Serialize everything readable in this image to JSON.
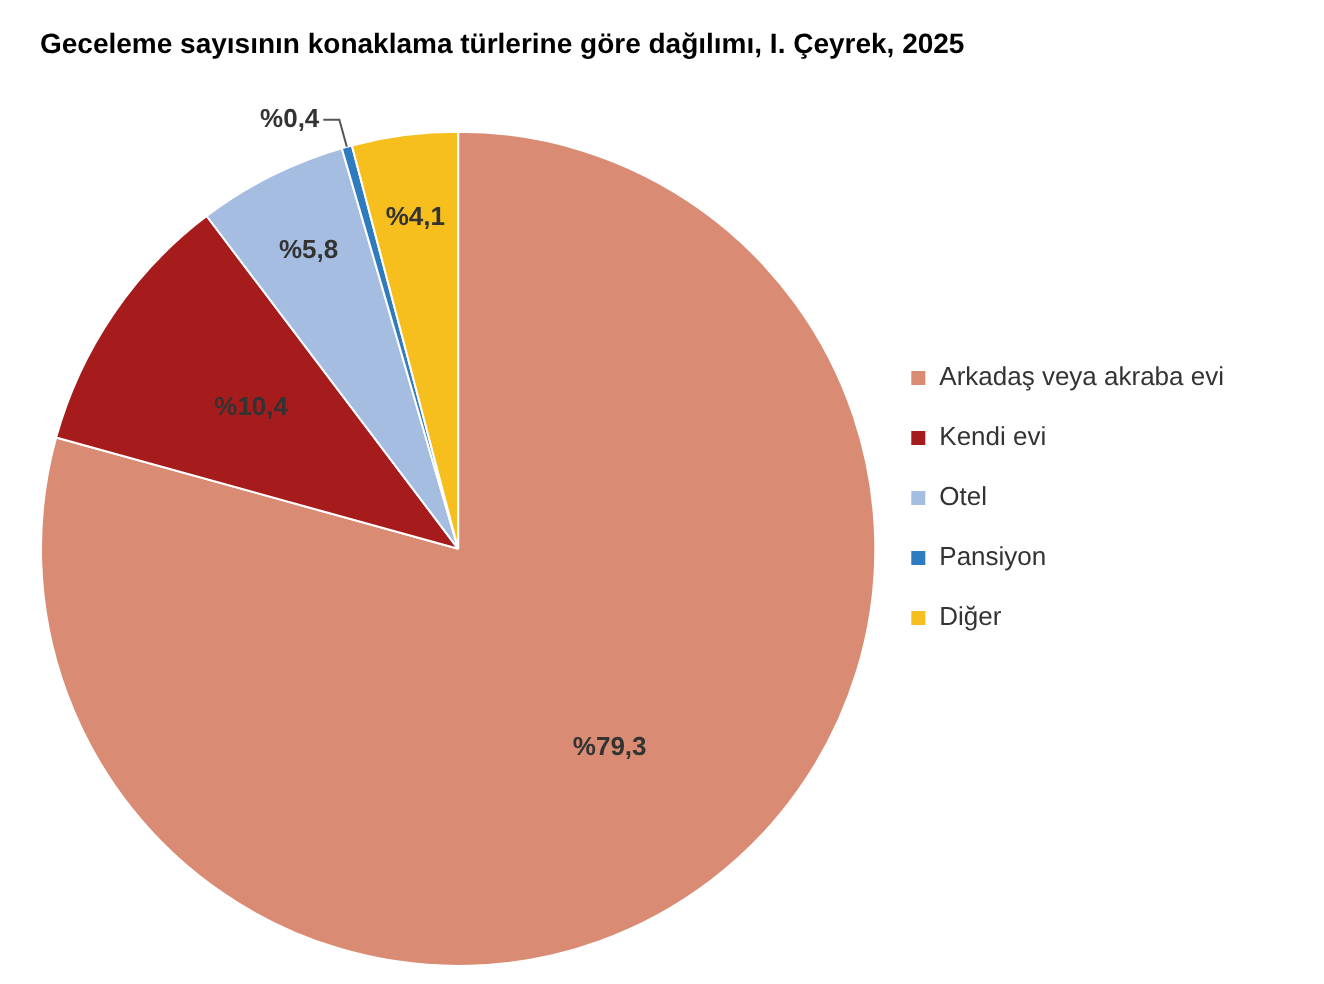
{
  "chart_data": {
    "type": "pie",
    "title": "Geceleme sayısının konaklama türlerine göre dağılımı, I. Çeyrek, 2025",
    "categories": [
      "Arkadaş veya akraba evi",
      "Kendi evi",
      "Otel",
      "Pansiyon",
      "Diğer"
    ],
    "values": [
      79.3,
      10.4,
      5.8,
      0.4,
      4.1
    ],
    "colors": [
      "#d98b73",
      "#a61b1b",
      "#a5bde0",
      "#2e7bbf",
      "#f7bf1e"
    ],
    "value_labels": [
      "%79,3",
      "%10,4",
      "%5,8",
      "%0,4",
      "%4,1"
    ],
    "legend": "right"
  }
}
